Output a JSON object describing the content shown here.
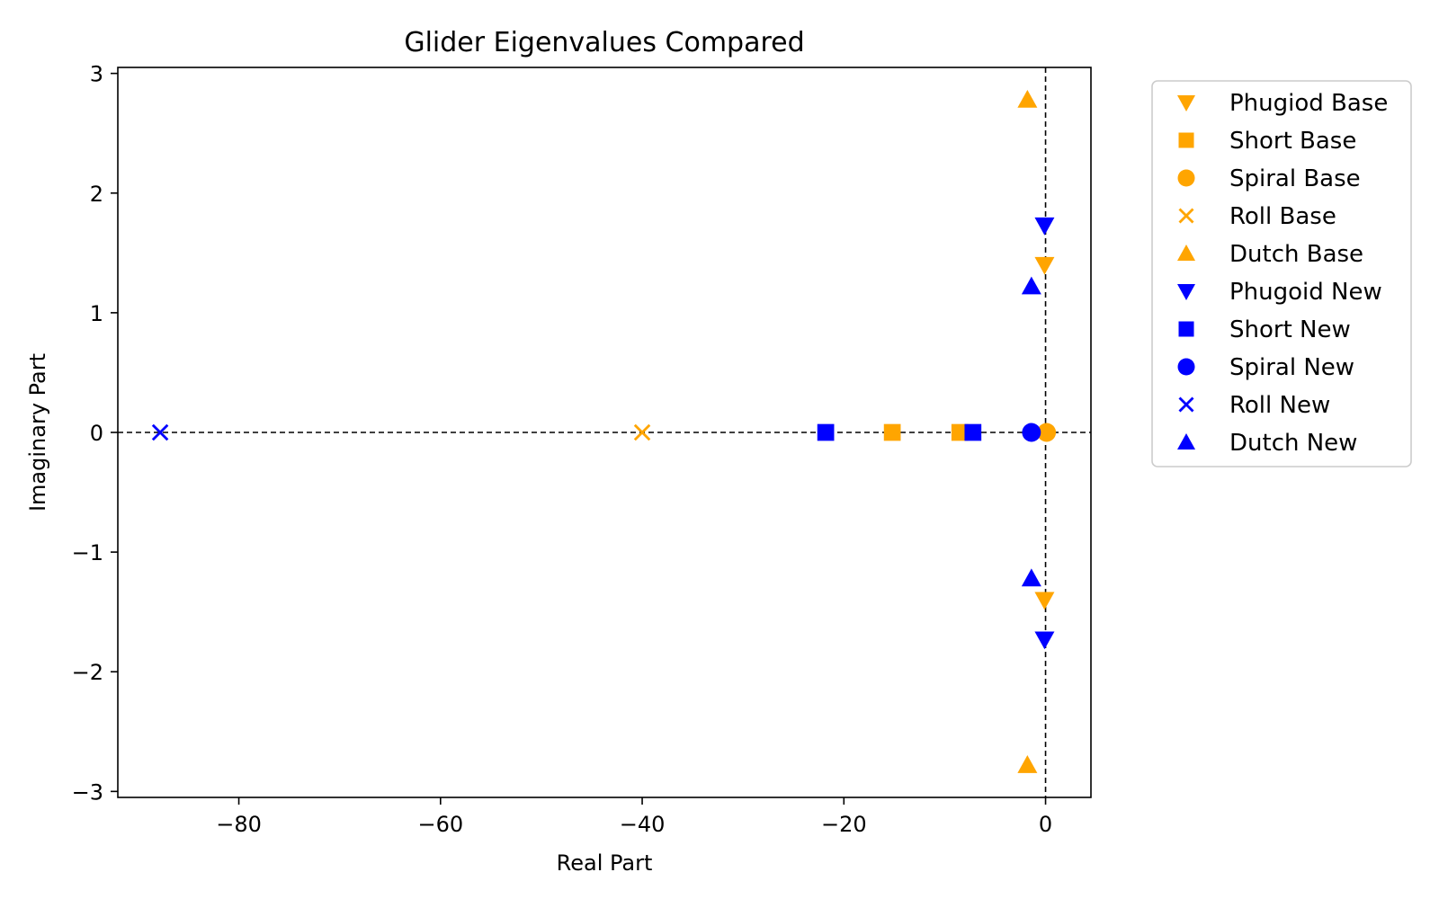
{
  "chart_data": {
    "type": "scatter",
    "title": "Glider Eigenvalues Compared",
    "xlabel": "Real Part",
    "ylabel": "Imaginary Part",
    "xlim": [
      -92,
      4.5
    ],
    "ylim": [
      -3.05,
      3.05
    ],
    "xticks": [
      -80,
      -60,
      -40,
      -20,
      0
    ],
    "yticks": [
      -3,
      -2,
      -1,
      0,
      1,
      2,
      3
    ],
    "grid": false,
    "reference_lines": {
      "x": 0,
      "y": 0,
      "style": "dashed"
    },
    "legend_position": "outside-right",
    "colors": {
      "base": "#FFA500",
      "new": "#0000FF"
    },
    "series": [
      {
        "name": "Phugiod Base",
        "marker": "triangle-down",
        "color": "#FFA500",
        "points": [
          [
            -0.1,
            1.4
          ],
          [
            -0.1,
            -1.4
          ]
        ]
      },
      {
        "name": "Short Base",
        "marker": "square",
        "color": "#FFA500",
        "points": [
          [
            -15.2,
            0
          ],
          [
            -8.5,
            0
          ]
        ]
      },
      {
        "name": "Spiral Base",
        "marker": "circle",
        "color": "#FFA500",
        "points": [
          [
            0.1,
            0
          ]
        ]
      },
      {
        "name": "Roll Base",
        "marker": "x",
        "color": "#FFA500",
        "points": [
          [
            -40.0,
            0
          ]
        ]
      },
      {
        "name": "Dutch Base",
        "marker": "triangle-up",
        "color": "#FFA500",
        "points": [
          [
            -1.8,
            2.78
          ],
          [
            -1.8,
            -2.78
          ]
        ]
      },
      {
        "name": "Phugoid New",
        "marker": "triangle-down",
        "color": "#0000FF",
        "points": [
          [
            -0.1,
            1.73
          ],
          [
            -0.1,
            -1.73
          ]
        ]
      },
      {
        "name": "Short New",
        "marker": "square",
        "color": "#0000FF",
        "points": [
          [
            -21.8,
            0
          ],
          [
            -7.2,
            0
          ]
        ]
      },
      {
        "name": "Spiral New",
        "marker": "circle",
        "color": "#0000FF",
        "points": [
          [
            -1.4,
            0
          ]
        ]
      },
      {
        "name": "Roll New",
        "marker": "x",
        "color": "#0000FF",
        "points": [
          [
            -87.8,
            0
          ]
        ]
      },
      {
        "name": "Dutch New",
        "marker": "triangle-up",
        "color": "#0000FF",
        "points": [
          [
            -1.4,
            1.22
          ],
          [
            -1.4,
            -1.22
          ]
        ]
      }
    ]
  }
}
